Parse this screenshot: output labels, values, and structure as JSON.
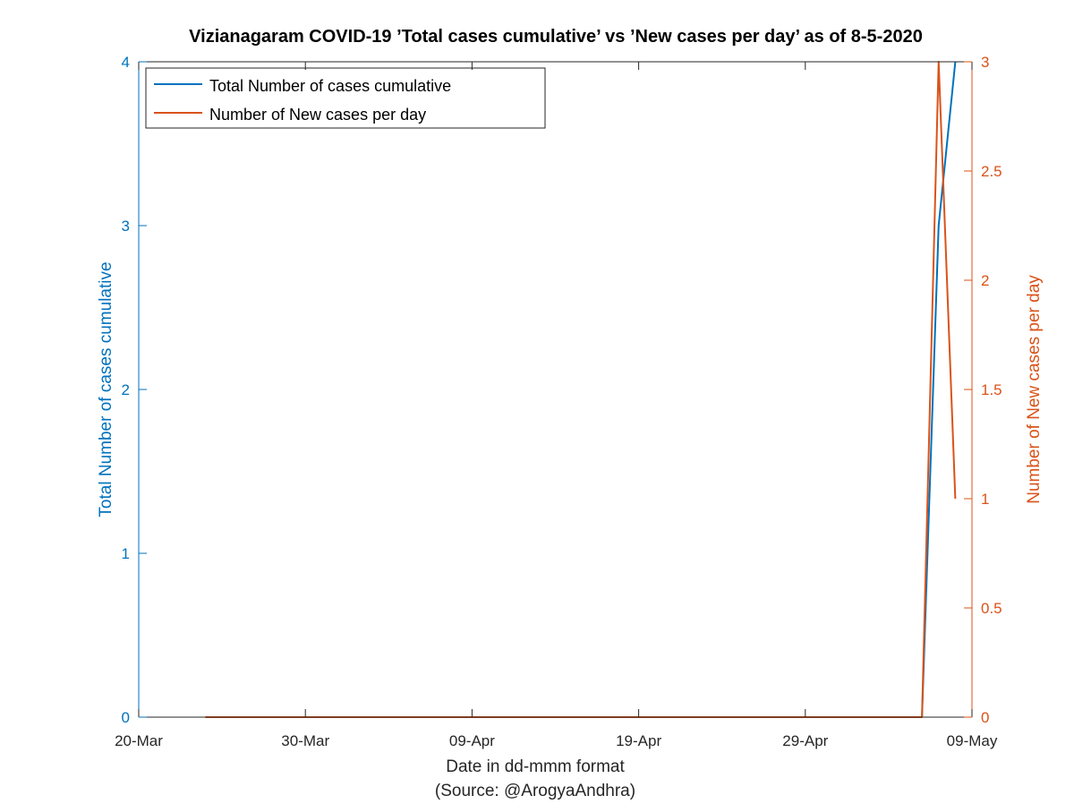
{
  "chart_data": {
    "type": "line",
    "title": "Vizianagaram COVID-19 ’Total cases cumulative’ vs ’New cases per day’ as of 8-5-2020",
    "xlabel": "Date in dd-mmm format",
    "xlabel_source": "(Source: @ArogyaAndhra)",
    "ylabel_left": "Total Number of cases cumulative",
    "ylabel_right": "Number of New cases per day",
    "x_range": [
      "2020-03-20",
      "2020-05-09"
    ],
    "x_ticks": [
      "20-Mar",
      "30-Mar",
      "09-Apr",
      "19-Apr",
      "29-Apr",
      "09-May"
    ],
    "ylim_left": [
      0,
      4
    ],
    "y_ticks_left": [
      "0",
      "1",
      "2",
      "3",
      "4"
    ],
    "ylim_right": [
      0,
      3
    ],
    "y_ticks_right": [
      "0",
      "0.5",
      "1",
      "1.5",
      "2",
      "2.5",
      "3"
    ],
    "legend_position": "top-left",
    "grid": false,
    "colors": {
      "left": "#0072bd",
      "right": "#d95319"
    },
    "series": [
      {
        "name": "Total Number of cases cumulative",
        "axis": "left",
        "x": [
          "2020-05-06",
          "2020-05-07",
          "2020-05-08"
        ],
        "values": [
          0,
          3,
          4
        ]
      },
      {
        "name": "Number of New cases per day",
        "axis": "right",
        "x": [
          "2020-03-24",
          "2020-05-06",
          "2020-05-07",
          "2020-05-08"
        ],
        "values": [
          0,
          0,
          3,
          1
        ]
      }
    ]
  }
}
